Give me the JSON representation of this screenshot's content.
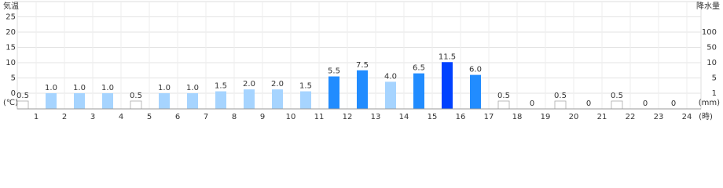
{
  "chart_data": {
    "type": "bar",
    "left_axis_title": "気温",
    "left_axis_unit": "(℃)",
    "right_axis_title": "降水量",
    "right_axis_unit": "(mm)",
    "x_unit": "(時)",
    "temp_ticks": [
      25,
      20,
      15,
      10,
      5,
      0
    ],
    "categories": [
      "1",
      "2",
      "3",
      "4",
      "5",
      "6",
      "7",
      "8",
      "9",
      "10",
      "11",
      "12",
      "13",
      "14",
      "15",
      "16",
      "17",
      "18",
      "19",
      "20",
      "21",
      "22",
      "23",
      "24"
    ],
    "values": [
      0.5,
      1,
      1,
      1,
      0.5,
      1,
      1,
      1.5,
      2,
      2,
      1.5,
      5.5,
      7.5,
      4,
      6.5,
      11.5,
      6,
      0.5,
      0,
      0.5,
      0,
      0.5,
      0,
      0
    ],
    "value_labels": [
      "0.5",
      "1.0",
      "1.0",
      "1.0",
      "0.5",
      "1.0",
      "1.0",
      "1.5",
      "2.0",
      "2.0",
      "1.5",
      "5.5",
      "7.5",
      "4.0",
      "6.5",
      "11.5",
      "6.0",
      "0.5",
      "0",
      "0.5",
      "0",
      "0.5",
      "0",
      "0"
    ],
    "colors": [
      "#ffffff",
      "#a6d4ff",
      "#a6d4ff",
      "#a6d4ff",
      "#ffffff",
      "#a6d4ff",
      "#a6d4ff",
      "#a6d4ff",
      "#a6d4ff",
      "#a6d4ff",
      "#a6d4ff",
      "#218cff",
      "#218cff",
      "#a6d4ff",
      "#218cff",
      "#0041ff",
      "#218cff",
      "#ffffff",
      "#ffffff",
      "#ffffff",
      "#ffffff",
      "#ffffff",
      "#ffffff",
      "#ffffff"
    ],
    "ylim": [
      0,
      100
    ],
    "yticks": [
      100,
      50,
      10,
      5,
      1
    ],
    "grid": true
  }
}
